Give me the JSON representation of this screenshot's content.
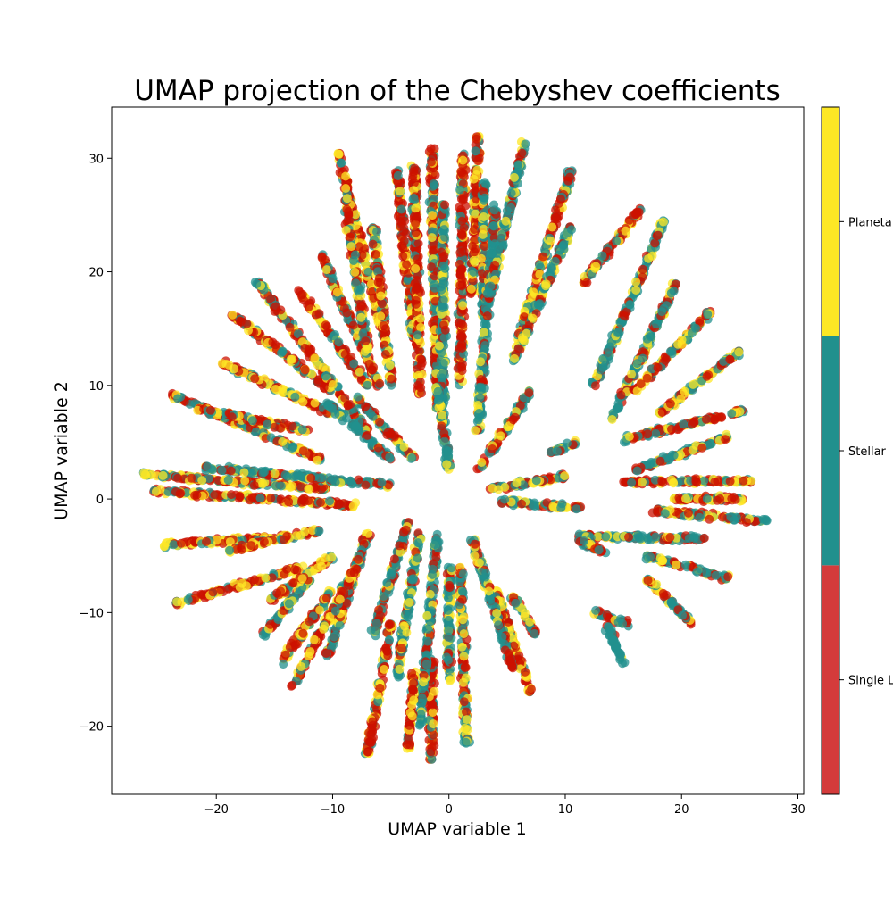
{
  "chart_data": {
    "type": "scatter",
    "title": "UMAP projection of the Chebyshev coefficients",
    "xlabel": "UMAP variable 1",
    "ylabel": "UMAP variable 2",
    "xlim": [
      -29,
      30.5
    ],
    "ylim": [
      -26,
      34.5
    ],
    "xticks": [
      -20,
      -10,
      0,
      10,
      20,
      30
    ],
    "yticks": [
      -20,
      -10,
      0,
      10,
      20,
      30
    ],
    "xtick_labels": [
      "−20",
      "−10",
      "0",
      "10",
      "20",
      "30"
    ],
    "ytick_labels": [
      "−20",
      "−10",
      "0",
      "10",
      "20",
      "30"
    ],
    "grid": false,
    "marker_alpha": 0.75,
    "colorbar": {
      "placement": "right",
      "categories": [
        {
          "label": "Single L",
          "color": "#d43b3b"
        },
        {
          "label": "Stellar",
          "color": "#21908d"
        },
        {
          "label": "Planeta",
          "color": "#fde725"
        }
      ]
    },
    "series_colors": {
      "single": "#cc1100",
      "stellar": "#21908d",
      "planetary": "#fde725"
    },
    "clusters": [
      {
        "x0": -26.5,
        "y0": 2.2,
        "x1": -10.5,
        "y1": 0.9,
        "mix": [
          0.45,
          0.2,
          0.35
        ]
      },
      {
        "x0": -25.5,
        "y0": 0.7,
        "x1": -8,
        "y1": -0.5,
        "mix": [
          0.45,
          0.2,
          0.35
        ]
      },
      {
        "x0": -21,
        "y0": 2.8,
        "x1": -5,
        "y1": 1.2,
        "mix": [
          0.25,
          0.55,
          0.2
        ]
      },
      {
        "x0": -24.5,
        "y0": -4.0,
        "x1": -13.5,
        "y1": -3.3,
        "mix": [
          0.45,
          0.15,
          0.4
        ]
      },
      {
        "x0": -23.5,
        "y0": -9.2,
        "x1": -12.5,
        "y1": -6.0,
        "mix": [
          0.45,
          0.2,
          0.35
        ]
      },
      {
        "x0": -19,
        "y0": -4.5,
        "x1": -11,
        "y1": -2.8,
        "mix": [
          0.4,
          0.2,
          0.4
        ]
      },
      {
        "x0": -24,
        "y0": 9.3,
        "x1": -11,
        "y1": 3.5,
        "mix": [
          0.4,
          0.3,
          0.3
        ]
      },
      {
        "x0": -22,
        "y0": 8.0,
        "x1": -12,
        "y1": 6.0,
        "mix": [
          0.45,
          0.3,
          0.25
        ]
      },
      {
        "x0": -19.5,
        "y0": 12.0,
        "x1": -10,
        "y1": 7.5,
        "mix": [
          0.45,
          0.2,
          0.35
        ]
      },
      {
        "x0": -19,
        "y0": 16.5,
        "x1": -10,
        "y1": 9.5,
        "mix": [
          0.5,
          0.2,
          0.3
        ]
      },
      {
        "x0": -16.5,
        "y0": 19.2,
        "x1": -7,
        "y1": 6.0,
        "mix": [
          0.5,
          0.3,
          0.2
        ]
      },
      {
        "x0": -13,
        "y0": 18.5,
        "x1": -7,
        "y1": 10.0,
        "mix": [
          0.55,
          0.15,
          0.3
        ]
      },
      {
        "x0": -11,
        "y0": 21.5,
        "x1": -6,
        "y1": 10.0,
        "mix": [
          0.5,
          0.25,
          0.25
        ]
      },
      {
        "x0": -9.5,
        "y0": 30.5,
        "x1": -5.5,
        "y1": 14.0,
        "mix": [
          0.5,
          0.2,
          0.3
        ]
      },
      {
        "x0": -9,
        "y0": 26.5,
        "x1": -7,
        "y1": 13.0,
        "mix": [
          0.4,
          0.3,
          0.3
        ]
      },
      {
        "x0": -6.5,
        "y0": 24.0,
        "x1": -5.0,
        "y1": 10.0,
        "mix": [
          0.4,
          0.3,
          0.3
        ]
      },
      {
        "x0": -4.5,
        "y0": 29.0,
        "x1": -3,
        "y1": 14.0,
        "mix": [
          0.55,
          0.15,
          0.3
        ]
      },
      {
        "x0": -3,
        "y0": 29.5,
        "x1": -2.5,
        "y1": 9.0,
        "mix": [
          0.55,
          0.2,
          0.25
        ]
      },
      {
        "x0": -1.5,
        "y0": 31.0,
        "x1": -1.0,
        "y1": 8.0,
        "mix": [
          0.5,
          0.25,
          0.25
        ]
      },
      {
        "x0": -0.5,
        "y0": 26.0,
        "x1": -0.5,
        "y1": 6.0,
        "mix": [
          0.2,
          0.65,
          0.15
        ]
      },
      {
        "x0": 1.2,
        "y0": 30.5,
        "x1": 1.0,
        "y1": 10.0,
        "mix": [
          0.55,
          0.2,
          0.25
        ]
      },
      {
        "x0": 2.5,
        "y0": 32.0,
        "x1": 2.0,
        "y1": 18.0,
        "mix": [
          0.5,
          0.2,
          0.3
        ]
      },
      {
        "x0": 3.0,
        "y0": 28.0,
        "x1": 3.0,
        "y1": 16.0,
        "mix": [
          0.2,
          0.6,
          0.2
        ]
      },
      {
        "x0": 4.0,
        "y0": 26.0,
        "x1": 2.5,
        "y1": 6.0,
        "mix": [
          0.25,
          0.6,
          0.15
        ]
      },
      {
        "x0": 6.5,
        "y0": 31.5,
        "x1": 3.5,
        "y1": 18.0,
        "mix": [
          0.25,
          0.55,
          0.2
        ]
      },
      {
        "x0": 10.5,
        "y0": 29.0,
        "x1": 6.0,
        "y1": 14.0,
        "mix": [
          0.45,
          0.25,
          0.3
        ]
      },
      {
        "x0": 10.5,
        "y0": 24.0,
        "x1": 5.5,
        "y1": 12.0,
        "mix": [
          0.25,
          0.55,
          0.2
        ]
      },
      {
        "x0": 16.5,
        "y0": 25.5,
        "x1": 11.5,
        "y1": 19.0,
        "mix": [
          0.5,
          0.25,
          0.25
        ]
      },
      {
        "x0": 18.5,
        "y0": 24.5,
        "x1": 12.5,
        "y1": 10.0,
        "mix": [
          0.25,
          0.55,
          0.2
        ]
      },
      {
        "x0": 19.5,
        "y0": 19.0,
        "x1": 14,
        "y1": 7.0,
        "mix": [
          0.3,
          0.5,
          0.2
        ]
      },
      {
        "x0": 22.5,
        "y0": 16.5,
        "x1": 16,
        "y1": 9.5,
        "mix": [
          0.45,
          0.2,
          0.35
        ]
      },
      {
        "x0": 25,
        "y0": 13.0,
        "x1": 18,
        "y1": 7.5,
        "mix": [
          0.4,
          0.3,
          0.3
        ]
      },
      {
        "x0": 25.5,
        "y0": 7.8,
        "x1": 15,
        "y1": 5.2,
        "mix": [
          0.45,
          0.25,
          0.3
        ]
      },
      {
        "x0": 24,
        "y0": 5.5,
        "x1": 16,
        "y1": 2.5,
        "mix": [
          0.4,
          0.3,
          0.3
        ]
      },
      {
        "x0": 26,
        "y0": 1.6,
        "x1": 15,
        "y1": 1.5,
        "mix": [
          0.4,
          0.3,
          0.3
        ]
      },
      {
        "x0": 25.5,
        "y0": 0.0,
        "x1": 19,
        "y1": 0.0,
        "mix": [
          0.55,
          0.2,
          0.25
        ]
      },
      {
        "x0": 27.5,
        "y0": -2.0,
        "x1": 17.5,
        "y1": -1.0,
        "mix": [
          0.3,
          0.4,
          0.3
        ]
      },
      {
        "x0": 22,
        "y0": -3.5,
        "x1": 11,
        "y1": -3.3,
        "mix": [
          0.35,
          0.45,
          0.2
        ]
      },
      {
        "x0": 24,
        "y0": -7.0,
        "x1": 17,
        "y1": -5.0,
        "mix": [
          0.3,
          0.4,
          0.3
        ]
      },
      {
        "x0": 21,
        "y0": -11.0,
        "x1": 17,
        "y1": -7.0,
        "mix": [
          0.35,
          0.4,
          0.25
        ]
      },
      {
        "x0": 15.5,
        "y0": -11.0,
        "x1": 12.5,
        "y1": -10.0,
        "mix": [
          0.3,
          0.5,
          0.2
        ]
      },
      {
        "x0": 15,
        "y0": -14.5,
        "x1": 13.5,
        "y1": -11.0,
        "mix": [
          0.05,
          0.9,
          0.05
        ]
      },
      {
        "x0": 14,
        "y0": -5.0,
        "x1": 11,
        "y1": -3.5,
        "mix": [
          0.45,
          0.35,
          0.2
        ]
      },
      {
        "x0": 11.5,
        "y0": -0.8,
        "x1": 4.5,
        "y1": -0.2,
        "mix": [
          0.3,
          0.4,
          0.3
        ]
      },
      {
        "x0": 10,
        "y0": 2.0,
        "x1": 3.5,
        "y1": 0.9,
        "mix": [
          0.45,
          0.25,
          0.3
        ]
      },
      {
        "x0": 11,
        "y0": 5.0,
        "x1": 8.5,
        "y1": 4.0,
        "mix": [
          0.2,
          0.5,
          0.3
        ]
      },
      {
        "x0": 7,
        "y0": 9.5,
        "x1": 2.5,
        "y1": 2.5,
        "mix": [
          0.45,
          0.3,
          0.25
        ]
      },
      {
        "x0": 7,
        "y0": -17.0,
        "x1": 4.0,
        "y1": -8.0,
        "mix": [
          0.45,
          0.15,
          0.4
        ]
      },
      {
        "x0": 7.5,
        "y0": -12.0,
        "x1": 5.5,
        "y1": -8.5,
        "mix": [
          0.5,
          0.2,
          0.3
        ]
      },
      {
        "x0": 5.5,
        "y0": -15.0,
        "x1": 2.0,
        "y1": -3.5,
        "mix": [
          0.3,
          0.5,
          0.2
        ]
      },
      {
        "x0": 1.5,
        "y0": -21.5,
        "x1": 1.0,
        "y1": -6.0,
        "mix": [
          0.4,
          0.3,
          0.3
        ]
      },
      {
        "x0": 0.0,
        "y0": -16.0,
        "x1": 0.0,
        "y1": -6.0,
        "mix": [
          0.2,
          0.6,
          0.2
        ]
      },
      {
        "x0": -1.5,
        "y0": -23.0,
        "x1": -1.5,
        "y1": -14.0,
        "mix": [
          0.55,
          0.15,
          0.3
        ]
      },
      {
        "x0": -2.5,
        "y0": -20.0,
        "x1": -1.0,
        "y1": -3.0,
        "mix": [
          0.2,
          0.65,
          0.15
        ]
      },
      {
        "x0": -3.5,
        "y0": -22.0,
        "x1": -3.0,
        "y1": -15.0,
        "mix": [
          0.55,
          0.15,
          0.3
        ]
      },
      {
        "x0": -4.5,
        "y0": -16.0,
        "x1": -2.5,
        "y1": -3.0,
        "mix": [
          0.2,
          0.6,
          0.2
        ]
      },
      {
        "x0": -7.0,
        "y0": -22.5,
        "x1": -5.0,
        "y1": -11.0,
        "mix": [
          0.5,
          0.15,
          0.35
        ]
      },
      {
        "x0": -6.5,
        "y0": -12.0,
        "x1": -3.5,
        "y1": -2.0,
        "mix": [
          0.3,
          0.5,
          0.2
        ]
      },
      {
        "x0": -10.5,
        "y0": -14.0,
        "x1": -7.0,
        "y1": -3.0,
        "mix": [
          0.3,
          0.5,
          0.2
        ]
      },
      {
        "x0": -13.5,
        "y0": -16.5,
        "x1": -8.0,
        "y1": -6.0,
        "mix": [
          0.5,
          0.15,
          0.35
        ]
      },
      {
        "x0": -14.5,
        "y0": -14.5,
        "x1": -10,
        "y1": -8.0,
        "mix": [
          0.45,
          0.25,
          0.3
        ]
      },
      {
        "x0": -16,
        "y0": -12.0,
        "x1": -12,
        "y1": -7.0,
        "mix": [
          0.2,
          0.65,
          0.15
        ]
      },
      {
        "x0": -15.5,
        "y0": -9.0,
        "x1": -10.0,
        "y1": -5.0,
        "mix": [
          0.4,
          0.2,
          0.4
        ]
      },
      {
        "x0": -10.5,
        "y0": 8.5,
        "x1": -5,
        "y1": 3.5,
        "mix": [
          0.15,
          0.75,
          0.1
        ]
      },
      {
        "x0": -8,
        "y0": 9.0,
        "x1": -3,
        "y1": 3.5,
        "mix": [
          0.3,
          0.5,
          0.2
        ]
      },
      {
        "x0": -1,
        "y0": 10.0,
        "x1": 0,
        "y1": 2.5,
        "mix": [
          0.15,
          0.7,
          0.15
        ]
      }
    ]
  }
}
